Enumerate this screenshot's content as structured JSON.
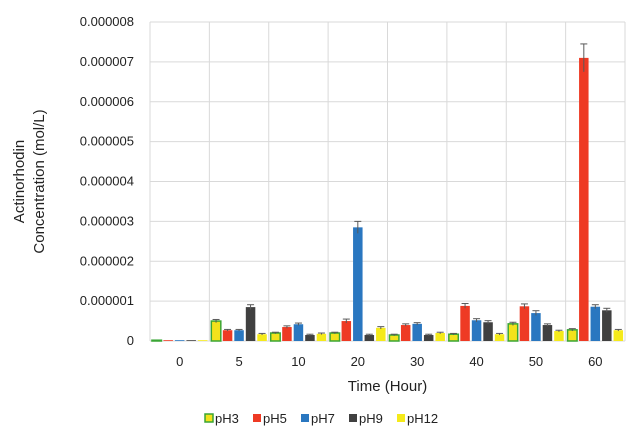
{
  "chart_data": {
    "type": "bar",
    "title": "",
    "xlabel": "Time (Hour)",
    "ylabel": [
      "Actinorhodin",
      "Concentration (mol/L)"
    ],
    "categories": [
      "0",
      "5",
      "10",
      "20",
      "30",
      "40",
      "50",
      "60"
    ],
    "ylim": [
      0,
      8e-06
    ],
    "yticks": [
      "0",
      "0.000001",
      "0.000002",
      "0.000003",
      "0.000004",
      "0.000005",
      "0.000006",
      "0.000007",
      "0.000008"
    ],
    "grid": true,
    "legend_position": "bottom",
    "series": [
      {
        "name": "pH3",
        "color": "#f2e21b",
        "edge": "#3aa535",
        "values": [
          0.0,
          5e-07,
          2e-07,
          2e-07,
          1.5e-07,
          1.7e-07,
          4.3e-07,
          2.8e-07
        ],
        "errors": [
          0.0,
          4e-08,
          2e-08,
          2e-08,
          2e-08,
          2e-08,
          4e-08,
          3e-08
        ]
      },
      {
        "name": "pH5",
        "color": "#ee3a24",
        "edge": "#ee3a24",
        "values": [
          0.0,
          2.7e-07,
          3.5e-07,
          5e-07,
          4e-07,
          8.8e-07,
          8.7e-07,
          7.1e-06
        ],
        "errors": [
          0.0,
          2e-08,
          3e-08,
          5e-08,
          3e-08,
          6e-08,
          6e-08,
          3.5e-07
        ]
      },
      {
        "name": "pH7",
        "color": "#2a77c0",
        "edge": "#2a77c0",
        "values": [
          0.0,
          2.7e-07,
          4.2e-07,
          2.85e-06,
          4.3e-07,
          5.2e-07,
          7e-07,
          8.6e-07
        ],
        "errors": [
          0.0,
          2e-08,
          3e-08,
          1.5e-07,
          3e-08,
          4e-08,
          6e-08,
          5e-08
        ]
      },
      {
        "name": "pH9",
        "color": "#404040",
        "edge": "#404040",
        "values": [
          0.0,
          8.5e-07,
          1.5e-07,
          1.5e-07,
          1.5e-07,
          4.7e-07,
          4e-07,
          7.7e-07
        ],
        "errors": [
          0.0,
          6e-08,
          2e-08,
          2e-08,
          2e-08,
          4e-08,
          3e-08,
          5e-08
        ]
      },
      {
        "name": "pH12",
        "color": "#f5ea1a",
        "edge": "#f5ea1a",
        "values": [
          0.0,
          1.7e-07,
          1.8e-07,
          3.3e-07,
          2e-07,
          1.7e-07,
          2.5e-07,
          2.7e-07
        ],
        "errors": [
          0.0,
          2e-08,
          2e-08,
          3e-08,
          2e-08,
          2e-08,
          2e-08,
          2e-08
        ]
      }
    ]
  }
}
